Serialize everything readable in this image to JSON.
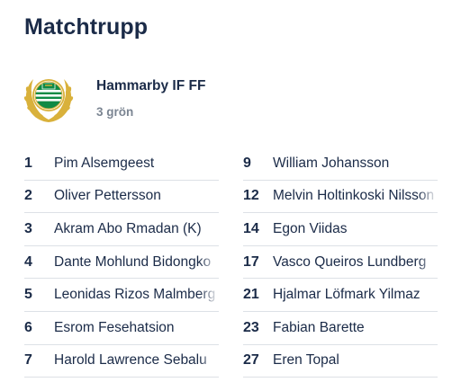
{
  "page": {
    "title": "Matchtrupp"
  },
  "team": {
    "name": "Hammarby IF FF",
    "formation": "3 grön",
    "logo_icon": "hammarby-crest-icon",
    "colors": {
      "green": "#0f8a45",
      "gold": "#d9b13b",
      "white": "#ffffff"
    }
  },
  "roster": {
    "left": [
      {
        "number": "1",
        "name": "Pim Alsemgeest"
      },
      {
        "number": "2",
        "name": "Oliver Pettersson"
      },
      {
        "number": "3",
        "name": "Akram Abo Rmadan (K)"
      },
      {
        "number": "4",
        "name": "Dante Mohlund Bidongko"
      },
      {
        "number": "5",
        "name": "Leonidas Rizos Malmberg"
      },
      {
        "number": "6",
        "name": "Esrom Fesehatsion"
      },
      {
        "number": "7",
        "name": "Harold Lawrence Sebalu"
      }
    ],
    "right": [
      {
        "number": "9",
        "name": "William Johansson"
      },
      {
        "number": "12",
        "name": "Melvin Holtinkoski Nilsson"
      },
      {
        "number": "14",
        "name": "Egon Viidas"
      },
      {
        "number": "17",
        "name": "Vasco Queiros Lundberg"
      },
      {
        "number": "21",
        "name": "Hjalmar Löfmark Yilmaz"
      },
      {
        "number": "23",
        "name": "Fabian Barette"
      },
      {
        "number": "27",
        "name": "Eren Topal"
      }
    ]
  }
}
